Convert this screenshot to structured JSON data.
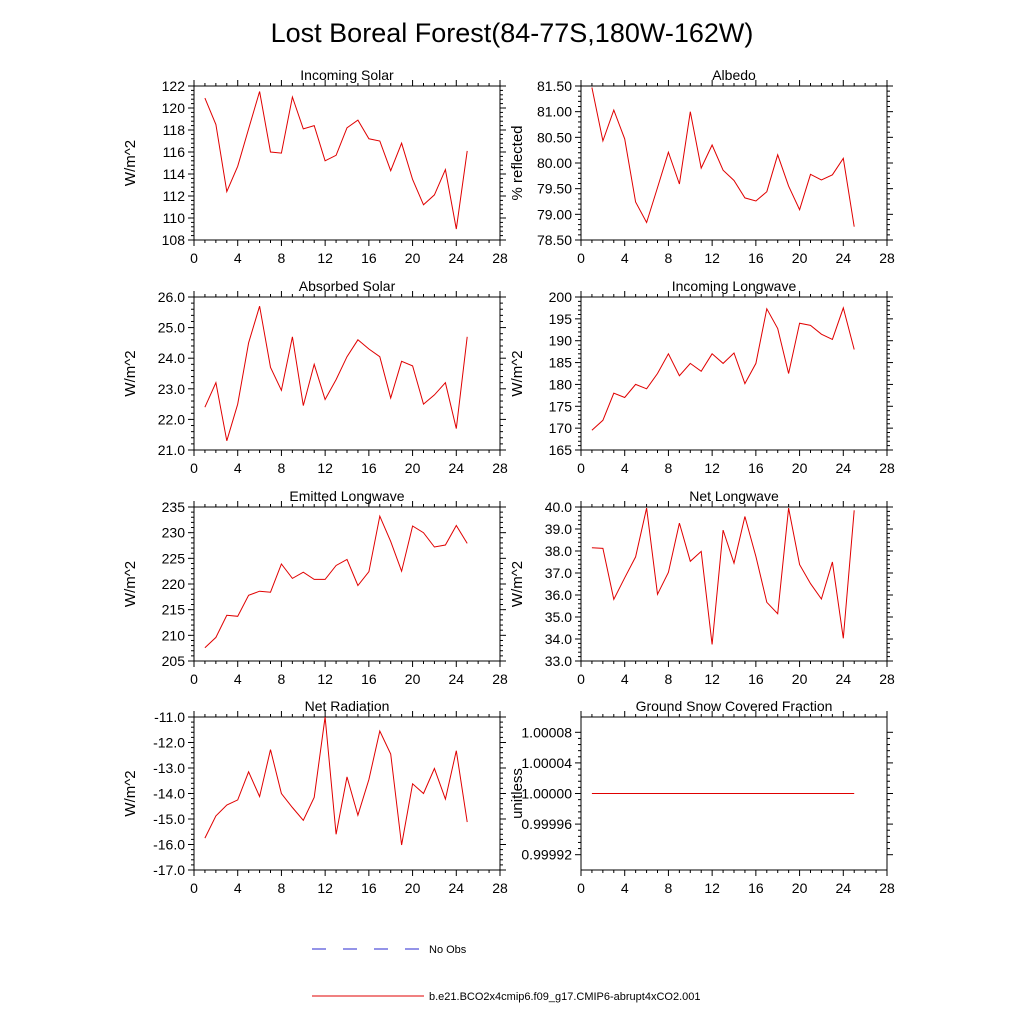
{
  "figure": {
    "title": "Lost Boreal Forest(84-77S,180W-162W)",
    "legend": [
      {
        "label": "No Obs",
        "color": "#2a2ad0",
        "dash": "dashed"
      },
      {
        "label": "b.e21.BCO2x4cmip6.f09_g17.CMIP6-abrupt4xCO2.001",
        "color": "#e00000",
        "dash": "solid"
      }
    ]
  },
  "chart_data": [
    {
      "type": "line",
      "title": "Incoming Solar",
      "ylabel": "W/m^2",
      "xlim": [
        0,
        28
      ],
      "ylim": [
        108,
        122
      ],
      "xticks": [
        "0",
        "4",
        "8",
        "12",
        "16",
        "20",
        "24",
        "28"
      ],
      "yticks": [
        "108",
        "110",
        "112",
        "114",
        "116",
        "118",
        "120",
        "122"
      ],
      "x": [
        1,
        2,
        3,
        4,
        5,
        6,
        7,
        8,
        9,
        10,
        11,
        12,
        13,
        14,
        15,
        16,
        17,
        18,
        19,
        20,
        21,
        22,
        23,
        24,
        25
      ],
      "series": [
        {
          "name": "b.e21.BCO2x4cmip6.f09_g17.CMIP6-abrupt4xCO2.001",
          "color": "#e00000",
          "values": [
            120.9,
            118.5,
            112.4,
            114.7,
            118.1,
            121.5,
            116.0,
            115.9,
            121.0,
            118.1,
            118.4,
            115.2,
            115.7,
            118.2,
            118.9,
            117.2,
            117.0,
            114.3,
            116.8,
            113.5,
            111.2,
            112.1,
            114.4,
            109.0,
            116.1
          ]
        }
      ]
    },
    {
      "type": "line",
      "title": "Albedo",
      "ylabel": "% reflected",
      "xlim": [
        0,
        28
      ],
      "ylim": [
        78.5,
        81.5
      ],
      "xticks": [
        "0",
        "4",
        "8",
        "12",
        "16",
        "20",
        "24",
        "28"
      ],
      "yticks": [
        "78.50",
        "79.00",
        "79.50",
        "80.00",
        "80.50",
        "81.00",
        "81.50"
      ],
      "x": [
        1,
        2,
        3,
        4,
        5,
        6,
        7,
        8,
        9,
        10,
        11,
        12,
        13,
        14,
        15,
        16,
        17,
        18,
        19,
        20,
        21,
        22,
        23,
        24,
        25
      ],
      "series": [
        {
          "name": "b.e21.BCO2x4cmip6.f09_g17.CMIP6-abrupt4xCO2.001",
          "color": "#e00000",
          "values": [
            81.47,
            80.43,
            81.03,
            80.47,
            79.24,
            78.84,
            79.52,
            80.21,
            79.59,
            81.0,
            79.9,
            80.35,
            79.86,
            79.66,
            79.32,
            79.26,
            79.44,
            80.16,
            79.55,
            79.09,
            79.78,
            79.67,
            79.77,
            80.09,
            78.76
          ]
        }
      ]
    },
    {
      "type": "line",
      "title": "Absorbed Solar",
      "ylabel": "W/m^2",
      "xlim": [
        0,
        28
      ],
      "ylim": [
        21.0,
        26.0
      ],
      "xticks": [
        "0",
        "4",
        "8",
        "12",
        "16",
        "20",
        "24",
        "28"
      ],
      "yticks": [
        "21.0",
        "22.0",
        "23.0",
        "24.0",
        "25.0",
        "26.0"
      ],
      "x": [
        1,
        2,
        3,
        4,
        5,
        6,
        7,
        8,
        9,
        10,
        11,
        12,
        13,
        14,
        15,
        16,
        17,
        18,
        19,
        20,
        21,
        22,
        23,
        24,
        25
      ],
      "series": [
        {
          "name": "b.e21.BCO2x4cmip6.f09_g17.CMIP6-abrupt4xCO2.001",
          "color": "#e00000",
          "values": [
            22.4,
            23.2,
            21.3,
            22.5,
            24.5,
            25.7,
            23.7,
            22.95,
            24.7,
            22.45,
            23.8,
            22.65,
            23.3,
            24.05,
            24.6,
            24.3,
            24.05,
            22.7,
            23.9,
            23.75,
            22.5,
            22.8,
            23.2,
            21.7,
            24.7
          ]
        }
      ]
    },
    {
      "type": "line",
      "title": "Incoming Longwave",
      "ylabel": "W/m^2",
      "xlim": [
        0,
        28
      ],
      "ylim": [
        165,
        200
      ],
      "xticks": [
        "0",
        "4",
        "8",
        "12",
        "16",
        "20",
        "24",
        "28"
      ],
      "yticks": [
        "165",
        "170",
        "175",
        "180",
        "185",
        "190",
        "195",
        "200"
      ],
      "x": [
        1,
        2,
        3,
        4,
        5,
        6,
        7,
        8,
        9,
        10,
        11,
        12,
        13,
        14,
        15,
        16,
        17,
        18,
        19,
        20,
        21,
        22,
        23,
        24,
        25
      ],
      "series": [
        {
          "name": "b.e21.BCO2x4cmip6.f09_g17.CMIP6-abrupt4xCO2.001",
          "color": "#e00000",
          "values": [
            169.5,
            171.8,
            178.0,
            177.0,
            180.0,
            179.0,
            182.5,
            187.0,
            182.0,
            184.8,
            183.0,
            187.0,
            184.8,
            187.2,
            180.2,
            184.8,
            197.3,
            192.8,
            182.5,
            194.0,
            193.5,
            191.5,
            190.3,
            197.5,
            188.0
          ]
        }
      ]
    },
    {
      "type": "line",
      "title": "Emitted Longwave",
      "ylabel": "W/m^2",
      "xlim": [
        0,
        28
      ],
      "ylim": [
        205,
        235
      ],
      "xticks": [
        "0",
        "4",
        "8",
        "12",
        "16",
        "20",
        "24",
        "28"
      ],
      "yticks": [
        "205",
        "210",
        "215",
        "220",
        "225",
        "230",
        "235"
      ],
      "x": [
        1,
        2,
        3,
        4,
        5,
        6,
        7,
        8,
        9,
        10,
        11,
        12,
        13,
        14,
        15,
        16,
        17,
        18,
        19,
        20,
        21,
        22,
        23,
        24,
        25
      ],
      "series": [
        {
          "name": "b.e21.BCO2x4cmip6.f09_g17.CMIP6-abrupt4xCO2.001",
          "color": "#e00000",
          "values": [
            207.6,
            209.6,
            213.9,
            213.7,
            217.8,
            218.6,
            218.4,
            223.9,
            221.1,
            222.3,
            220.9,
            220.9,
            223.6,
            224.8,
            219.7,
            222.4,
            233.2,
            228.3,
            222.5,
            231.3,
            230.0,
            227.2,
            227.6,
            231.4,
            227.9
          ]
        }
      ]
    },
    {
      "type": "line",
      "title": "Net Longwave",
      "ylabel": "W/m^2",
      "xlim": [
        0,
        28
      ],
      "ylim": [
        33.0,
        40.0
      ],
      "xticks": [
        "0",
        "4",
        "8",
        "12",
        "16",
        "20",
        "24",
        "28"
      ],
      "yticks": [
        "33.0",
        "34.0",
        "35.0",
        "36.0",
        "37.0",
        "38.0",
        "39.0",
        "40.0"
      ],
      "x": [
        1,
        2,
        3,
        4,
        5,
        6,
        7,
        8,
        9,
        10,
        11,
        12,
        13,
        14,
        15,
        16,
        17,
        18,
        19,
        20,
        21,
        22,
        23,
        24,
        25
      ],
      "series": [
        {
          "name": "b.e21.BCO2x4cmip6.f09_g17.CMIP6-abrupt4xCO2.001",
          "color": "#e00000",
          "values": [
            38.15,
            38.12,
            35.8,
            36.78,
            37.73,
            39.95,
            36.03,
            37.03,
            39.27,
            37.53,
            37.98,
            33.75,
            38.95,
            37.45,
            39.57,
            37.75,
            35.67,
            35.15,
            39.95,
            37.38,
            36.52,
            35.82,
            37.5,
            34.03,
            39.85
          ]
        }
      ]
    },
    {
      "type": "line",
      "title": "Net Radiation",
      "ylabel": "W/m^2",
      "xlim": [
        0,
        28
      ],
      "ylim": [
        -17.0,
        -11.0
      ],
      "xticks": [
        "0",
        "4",
        "8",
        "12",
        "16",
        "20",
        "24",
        "28"
      ],
      "yticks": [
        "-17.0",
        "-16.0",
        "-15.0",
        "-14.0",
        "-13.0",
        "-12.0",
        "-11.0"
      ],
      "x": [
        1,
        2,
        3,
        4,
        5,
        6,
        7,
        8,
        9,
        10,
        11,
        12,
        13,
        14,
        15,
        16,
        17,
        18,
        19,
        20,
        21,
        22,
        23,
        24,
        25
      ],
      "series": [
        {
          "name": "b.e21.BCO2x4cmip6.f09_g17.CMIP6-abrupt4xCO2.001",
          "color": "#e00000",
          "values": [
            -15.75,
            -14.88,
            -14.45,
            -14.25,
            -13.15,
            -14.12,
            -12.28,
            -14.0,
            -14.55,
            -15.05,
            -14.15,
            -11.0,
            -15.6,
            -13.35,
            -14.85,
            -13.45,
            -11.55,
            -12.45,
            -16.02,
            -13.62,
            -14.0,
            -13.02,
            -14.22,
            -12.32,
            -15.12
          ]
        }
      ]
    },
    {
      "type": "line",
      "title": "Ground Snow Covered Fraction",
      "ylabel": "unitless",
      "xlim": [
        0,
        28
      ],
      "ylim": [
        0.9999,
        1.0001
      ],
      "xticks": [
        "0",
        "4",
        "8",
        "12",
        "16",
        "20",
        "24",
        "28"
      ],
      "yticks": [
        "0.99992",
        "0.99996",
        "1.00000",
        "1.00004",
        "1.00008"
      ],
      "ytickvals": [
        0.99992,
        0.99996,
        1.0,
        1.00004,
        1.00008
      ],
      "x": [
        1,
        2,
        3,
        4,
        5,
        6,
        7,
        8,
        9,
        10,
        11,
        12,
        13,
        14,
        15,
        16,
        17,
        18,
        19,
        20,
        21,
        22,
        23,
        24,
        25
      ],
      "series": [
        {
          "name": "b.e21.BCO2x4cmip6.f09_g17.CMIP6-abrupt4xCO2.001",
          "color": "#e00000",
          "values": [
            1,
            1,
            1,
            1,
            1,
            1,
            1,
            1,
            1,
            1,
            1,
            1,
            1,
            1,
            1,
            1,
            1,
            1,
            1,
            1,
            1,
            1,
            1,
            1,
            1
          ]
        }
      ]
    }
  ]
}
